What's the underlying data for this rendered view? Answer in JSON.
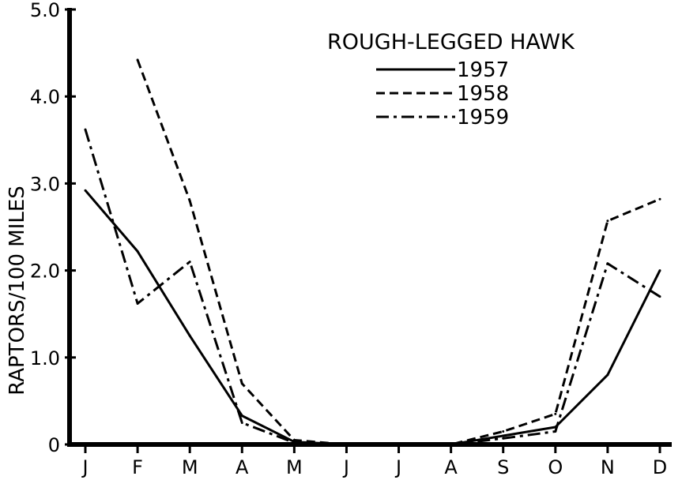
{
  "chart_data": {
    "type": "line",
    "title": "ROUGH-LEGGED HAWK",
    "xlabel": "",
    "ylabel": "RAPTORS/100 MILES",
    "categories": [
      "J",
      "F",
      "M",
      "A",
      "M",
      "J",
      "J",
      "A",
      "S",
      "O",
      "N",
      "D"
    ],
    "y_ticks": [
      "0",
      "1.0",
      "2.0",
      "3.0",
      "4.0",
      "5.0"
    ],
    "ylim": [
      0,
      5.0
    ],
    "grid": false,
    "legend_position": "top-right",
    "series": [
      {
        "name": "1957",
        "line_style": "solid",
        "values": [
          2.92,
          2.22,
          1.25,
          0.33,
          0.03,
          0.0,
          0.0,
          0.0,
          0.1,
          0.2,
          0.8,
          2.0
        ]
      },
      {
        "name": "1958",
        "line_style": "dashed",
        "values": [
          null,
          4.42,
          2.8,
          0.7,
          0.05,
          0.0,
          0.0,
          0.0,
          0.15,
          0.35,
          2.57,
          2.82
        ]
      },
      {
        "name": "1959",
        "line_style": "dash-dot",
        "values": [
          3.62,
          1.62,
          2.1,
          0.25,
          0.02,
          0.0,
          0.0,
          0.0,
          0.07,
          0.15,
          2.08,
          1.7
        ]
      }
    ],
    "color": "#000000"
  }
}
